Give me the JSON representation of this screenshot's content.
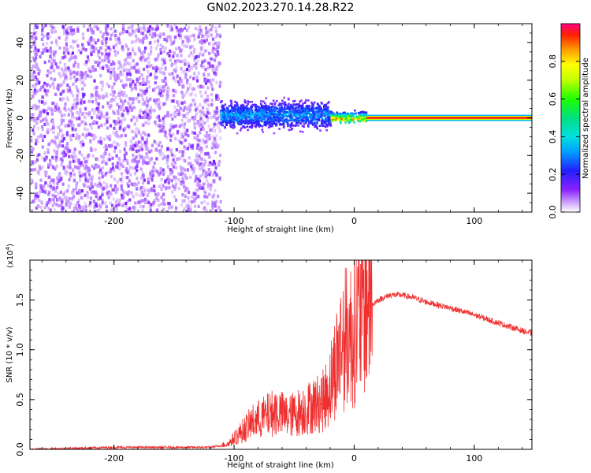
{
  "title": "GN02.2023.270.14.28.R22",
  "chart_data": [
    {
      "type": "heatmap",
      "xlabel": "Height of straight line (km)",
      "ylabel": "Frequency (Hz)",
      "xlim": [
        -270,
        148
      ],
      "ylim": [
        -50,
        50
      ],
      "x_ticks": [
        -200,
        -100,
        0,
        100
      ],
      "y_ticks": [
        -40,
        -20,
        0,
        20,
        40
      ],
      "colorbar": {
        "label": "Normalized spectral amplitude",
        "range": [
          0,
          1
        ],
        "ticks": [
          "0.0",
          "0.2",
          "0.4",
          "0.6",
          "0.8"
        ]
      },
      "regions": [
        {
          "x_start": -270,
          "x_end": -112,
          "freq_min": -50,
          "freq_max": 50,
          "amplitude_range": [
            0.05,
            0.15
          ]
        },
        {
          "x_start": -112,
          "x_end": -20,
          "freq_min": -8,
          "freq_max": 12,
          "amplitude_range": [
            0.1,
            0.35
          ]
        },
        {
          "x_start": -20,
          "x_end": 10,
          "freq_min": -3,
          "freq_max": 5,
          "amplitude_range": [
            0.2,
            0.9
          ]
        },
        {
          "x_start": 10,
          "x_end": 148,
          "freq_min": -1,
          "freq_max": 1,
          "amplitude_range": [
            0.9,
            1.0
          ]
        }
      ]
    },
    {
      "type": "line",
      "xlabel": "Height of straight line (km)",
      "ylabel": "SNR (10 * v/v)",
      "y_multiplier": "(x10",
      "y_exponent": "4",
      "y_multiplier_close": ")",
      "xlim": [
        -270,
        148
      ],
      "ylim": [
        0,
        1.9
      ],
      "x_ticks": [
        -200,
        -100,
        0,
        100
      ],
      "y_ticks": [
        "0.0",
        "0.5",
        "1.0",
        "1.5"
      ],
      "series": [
        {
          "color": "#f03030",
          "x": [
            -270,
            -200,
            -150,
            -120,
            -105,
            -95,
            -85,
            -75,
            -65,
            -55,
            -45,
            -35,
            -25,
            -20,
            -15,
            -10,
            -5,
            0,
            5,
            10,
            15,
            20,
            30,
            40,
            50,
            60,
            80,
            100,
            120,
            148
          ],
          "y": [
            0.0,
            0.02,
            0.02,
            0.02,
            0.05,
            0.15,
            0.25,
            0.3,
            0.35,
            0.3,
            0.35,
            0.4,
            0.45,
            0.6,
            0.8,
            1.0,
            1.05,
            1.1,
            1.25,
            1.4,
            1.45,
            1.5,
            1.55,
            1.55,
            1.52,
            1.48,
            1.42,
            1.35,
            1.27,
            1.16
          ]
        }
      ]
    }
  ]
}
